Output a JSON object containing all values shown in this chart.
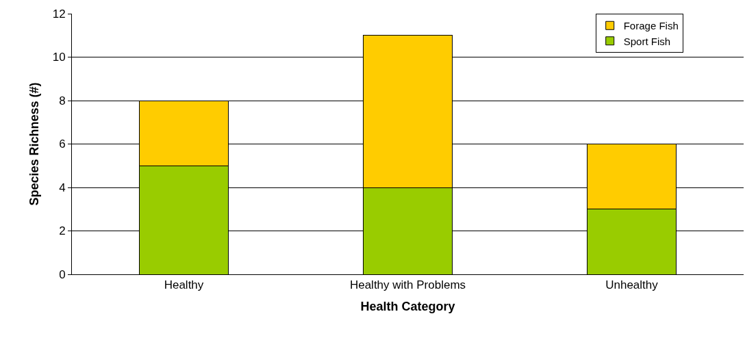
{
  "chart_data": {
    "type": "bar",
    "stacked": true,
    "xlabel": "Health Category",
    "ylabel": "Species Richness (#)",
    "categories": [
      "Healthy",
      "Healthy with Problems",
      "Unhealthy"
    ],
    "series": [
      {
        "name": "Sport Fish",
        "color": "#99cc00",
        "values": [
          5,
          4,
          3
        ]
      },
      {
        "name": "Forage Fish",
        "color": "#ffcc00",
        "values": [
          3,
          7,
          3
        ]
      }
    ],
    "ylim": [
      0,
      12
    ],
    "yticks": [
      0,
      2,
      4,
      6,
      8,
      10,
      12
    ],
    "grid": "y",
    "legend": "top right"
  }
}
